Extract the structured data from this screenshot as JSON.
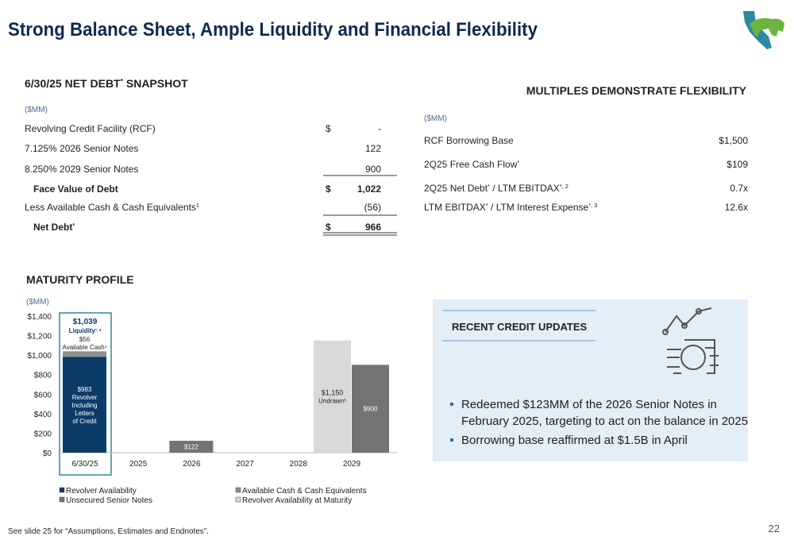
{
  "header": {
    "title": "Strong Balance Sheet, Ample Liquidity and Financial Flexibility"
  },
  "net_debt": {
    "title": "6/30/25 NET DEBT",
    "title_sup": "*",
    "title_rest": " SNAPSHOT",
    "unit": "($MM)",
    "rows": [
      {
        "label": "Revolving Credit Facility (RCF)",
        "currency": "$",
        "value": "-"
      },
      {
        "label": "7.125% 2026 Senior Notes",
        "value": "122"
      },
      {
        "label": "8.250% 2029 Senior Notes",
        "value": "900"
      },
      {
        "label": "Face Value of Debt",
        "currency": "$",
        "value": "1,022"
      },
      {
        "label": "Less Available Cash & Cash Equivalents",
        "sup": "1",
        "value": "(56)"
      },
      {
        "label": "Net Debt",
        "sup": "*",
        "currency": "$",
        "value": "966"
      }
    ]
  },
  "multiples": {
    "title": "MULTIPLES DEMONSTRATE FLEXIBILITY",
    "unit": "($MM)",
    "rows": [
      {
        "label": "RCF Borrowing Base",
        "value": "$1,500"
      },
      {
        "label": "2Q25 Free Cash Flow",
        "sup": "*",
        "value": "$109"
      },
      {
        "label": "2Q25 Net Debt",
        "sup": "*",
        "label_rest": " / LTM EBITDAX",
        "sup2": "*, 2",
        "value": "0.7x"
      },
      {
        "label": "LTM EBITDAX",
        "sup": "*",
        "label_rest": " / LTM Interest Expense",
        "sup2": "*, 3",
        "value": "12.6x"
      }
    ]
  },
  "chart_data": {
    "type": "bar",
    "title": "MATURITY PROFILE",
    "ylabel": "($MM)",
    "categories": [
      "6/30/25",
      "2025",
      "2026",
      "2027",
      "2028",
      "2029"
    ],
    "ylim": [
      0,
      1400
    ],
    "yticks": [
      {
        "value": 0,
        "label": "$0"
      },
      {
        "value": 200,
        "label": "$200"
      },
      {
        "value": 400,
        "label": "$400"
      },
      {
        "value": 600,
        "label": "$600"
      },
      {
        "value": 800,
        "label": "$800"
      },
      {
        "value": 1000,
        "label": "$1,000"
      },
      {
        "value": 1200,
        "label": "$1,200"
      },
      {
        "value": 1400,
        "label": "$1,400"
      }
    ],
    "series": [
      {
        "name": "Revolver Availability",
        "color": "#0b3c68",
        "values": [
          983,
          null,
          null,
          null,
          null,
          null
        ],
        "value_labels": [
          "$983",
          null,
          null,
          null,
          null,
          null
        ]
      },
      {
        "name": "Available Cash & Cash Equivalents",
        "color": "#8f8f8f",
        "values": [
          56,
          null,
          null,
          null,
          null,
          null
        ],
        "value_labels": [
          "$56",
          null,
          null,
          null,
          null,
          null
        ]
      },
      {
        "name": "Unsecured Senior Notes",
        "color": "#737373",
        "values": [
          null,
          null,
          122,
          null,
          null,
          900
        ],
        "value_labels": [
          null,
          null,
          "$122",
          null,
          null,
          "$900"
        ]
      },
      {
        "name": "Revolver Availability at Maturity",
        "color": "#d9d9d9",
        "values": [
          null,
          null,
          null,
          null,
          null,
          1150
        ],
        "value_labels": [
          null,
          null,
          null,
          null,
          null,
          "$1,150"
        ]
      }
    ],
    "annotations": {
      "total_label": "$1,039",
      "total_caption": "Liquidity",
      "total_caption_sup": "*, 4",
      "cash_caption": "Available Cash",
      "cash_caption_sup": "1",
      "revolver_caption": [
        "Revolver",
        "Including",
        "Letters",
        "of Credit"
      ],
      "undrawn_caption": "Undrawn",
      "undrawn_caption_sup": "5"
    }
  },
  "credit_updates": {
    "title": "RECENT CREDIT UPDATES",
    "bullets": [
      [
        "Redeemed $123MM of the 2026 Senior Notes in",
        "February 2025, targeting to act on the balance in 2025"
      ],
      [
        "Borrowing base reaffirmed at $1.5B in April"
      ]
    ]
  },
  "footer": {
    "note": "See slide 25 for “Assumptions, Estimates and Endnotes”.",
    "page": "22"
  }
}
